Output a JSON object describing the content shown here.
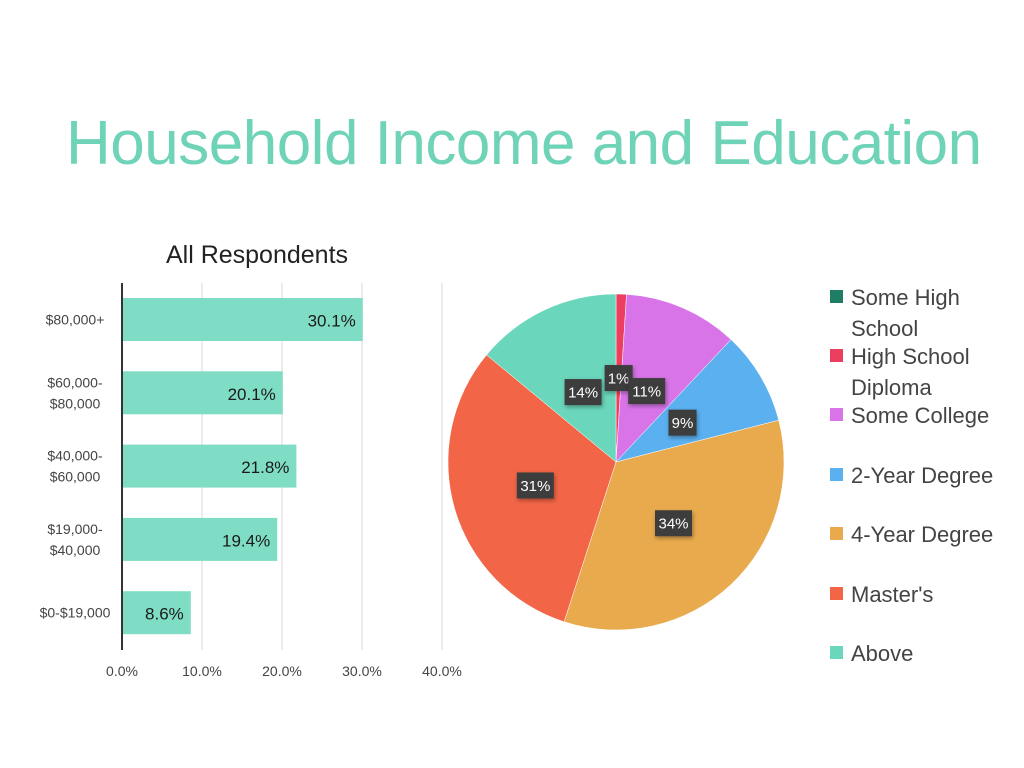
{
  "page_title": "Household Income and Education",
  "chart_data": [
    {
      "type": "bar",
      "orientation": "horizontal",
      "title": "All Respondents",
      "categories": [
        "$80,000+",
        "$60,000-\n$80,000",
        "$40,000-\n$60,000",
        "$19,000-\n$40,000",
        "$0-$19,000"
      ],
      "values": [
        30.1,
        20.1,
        21.8,
        19.4,
        8.6
      ],
      "value_labels": [
        "30.1%",
        "20.1%",
        "21.8%",
        "19.4%",
        "8.6%"
      ],
      "xlim": [
        0,
        40
      ],
      "x_ticks": [
        0,
        10,
        20,
        30,
        40
      ],
      "x_tick_labels": [
        "0.0%",
        "10.0%",
        "20.0%",
        "30.0%",
        "40.0%"
      ],
      "grid": true,
      "bar_color": "#7fddc5"
    },
    {
      "type": "pie",
      "labels": [
        "Some High School",
        "High School Diploma",
        "Some College",
        "2-Year Degree",
        "4-Year Degree",
        "Master's",
        "Above"
      ],
      "values": [
        0,
        1,
        11,
        9,
        34,
        31,
        14
      ],
      "value_labels": [
        "",
        "1%",
        "11%",
        "9%",
        "34%",
        "31%",
        "14%"
      ],
      "colors": [
        "#1e7d64",
        "#ec3f5f",
        "#d874e8",
        "#5bb0f0",
        "#e8aa4d",
        "#f26546",
        "#6ad6bb"
      ],
      "legend_position": "right"
    }
  ]
}
